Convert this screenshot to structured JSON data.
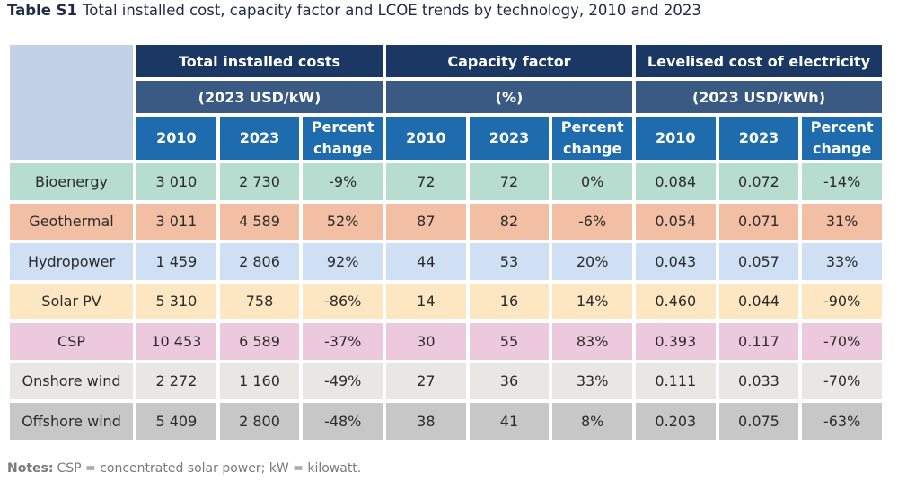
{
  "caption": {
    "label": "Table S1",
    "title": "Total installed cost, capacity factor and LCOE trends by technology, 2010 and 2023"
  },
  "groups": [
    {
      "title": "Total installed costs",
      "unit": "(2023 USD/kW)"
    },
    {
      "title": "Capacity factor",
      "unit": "(%)"
    },
    {
      "title": "Levelised cost of electricity",
      "unit": "(2023 USD/kWh)"
    }
  ],
  "subheaders": {
    "y2010": "2010",
    "y2023": "2023",
    "pct_line1": "Percent",
    "pct_line2": "change"
  },
  "rows": [
    {
      "name": "Bioenergy",
      "cost2010": "3 010",
      "cost2023": "2 730",
      "costpct": "-9%",
      "cf2010": "72",
      "cf2023": "72",
      "cfpct": "0%",
      "lcoe2010": "0.084",
      "lcoe2023": "0.072",
      "lcoepct": "-14%"
    },
    {
      "name": "Geothermal",
      "cost2010": "3 011",
      "cost2023": "4 589",
      "costpct": "52%",
      "cf2010": "87",
      "cf2023": "82",
      "cfpct": "-6%",
      "lcoe2010": "0.054",
      "lcoe2023": "0.071",
      "lcoepct": "31%"
    },
    {
      "name": "Hydropower",
      "cost2010": "1 459",
      "cost2023": "2 806",
      "costpct": "92%",
      "cf2010": "44",
      "cf2023": "53",
      "cfpct": "20%",
      "lcoe2010": "0.043",
      "lcoe2023": "0.057",
      "lcoepct": "33%"
    },
    {
      "name": "Solar PV",
      "cost2010": "5 310",
      "cost2023": "758",
      "costpct": "-86%",
      "cf2010": "14",
      "cf2023": "16",
      "cfpct": "14%",
      "lcoe2010": "0.460",
      "lcoe2023": "0.044",
      "lcoepct": "-90%"
    },
    {
      "name": "CSP",
      "cost2010": "10 453",
      "cost2023": "6 589",
      "costpct": "-37%",
      "cf2010": "30",
      "cf2023": "55",
      "cfpct": "83%",
      "lcoe2010": "0.393",
      "lcoe2023": "0.117",
      "lcoepct": "-70%"
    },
    {
      "name": "Onshore wind",
      "cost2010": "2 272",
      "cost2023": "1 160",
      "costpct": "-49%",
      "cf2010": "27",
      "cf2023": "36",
      "cfpct": "33%",
      "lcoe2010": "0.111",
      "lcoe2023": "0.033",
      "lcoepct": "-70%"
    },
    {
      "name": "Offshore wind",
      "cost2010": "5 409",
      "cost2023": "2 800",
      "costpct": "-48%",
      "cf2010": "38",
      "cf2023": "41",
      "cfpct": "8%",
      "lcoe2010": "0.203",
      "lcoe2023": "0.075",
      "lcoepct": "-63%"
    }
  ],
  "notes": {
    "label": "Notes:",
    "text": "CSP = concentrated solar power; kW = kilowatt."
  }
}
